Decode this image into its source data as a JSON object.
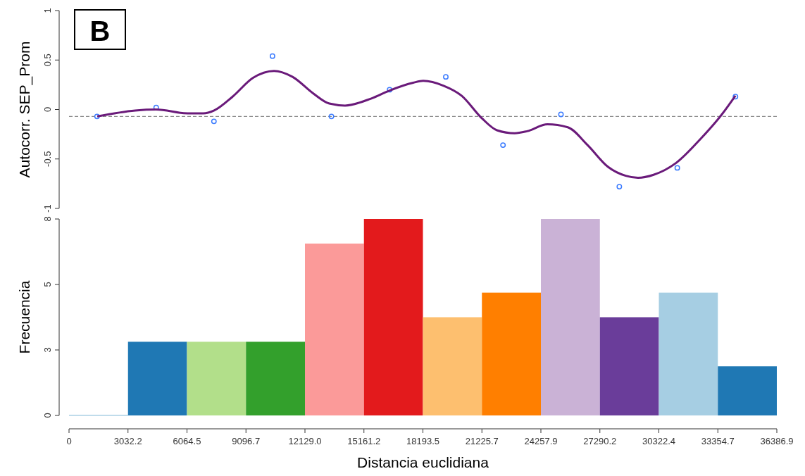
{
  "chart_data": [
    {
      "type": "scatter",
      "ylabel": "Autocorr. SEP_Prom",
      "annotations": [
        "B"
      ],
      "xlim": [
        0,
        36386.9
      ],
      "ylim": [
        -1,
        1
      ],
      "yticks": [
        -1,
        -0.5,
        0,
        0.5,
        1
      ],
      "tick_labels": "y",
      "grid": false,
      "ref_lines": [
        {
          "axis": "y",
          "value": -0.07,
          "color": "#8c8c8c",
          "line_style": "dashed"
        }
      ],
      "series": [
        {
          "type": "scatter",
          "color": "#3b7bff",
          "marker": "circle",
          "x": [
            1440,
            4480,
            7450,
            10460,
            13490,
            16480,
            19370,
            22310,
            25290,
            28290,
            31270,
            34260
          ],
          "values": [
            -0.07,
            0.02,
            -0.12,
            0.54,
            -0.07,
            0.2,
            0.33,
            -0.36,
            -0.05,
            -0.78,
            -0.59,
            0.13
          ]
        },
        {
          "type": "line",
          "color": "#6a1a7a",
          "marker": "none",
          "line_style": "solid",
          "x": [
            1450,
            3400,
            4480,
            6100,
            6900,
            7460,
            8410,
            9460,
            10540,
            11490,
            12570,
            13380,
            14190,
            15520,
            16460,
            17690,
            18210,
            19260,
            20180,
            21230,
            22000,
            22910,
            23540,
            24590,
            25640,
            26660,
            27710,
            28620,
            29250,
            30050,
            31210,
            32500,
            33560,
            34260
          ],
          "values": [
            -0.07,
            -0.01,
            0.0,
            -0.04,
            -0.04,
            -0.01,
            0.13,
            0.32,
            0.39,
            0.33,
            0.16,
            0.06,
            0.04,
            0.11,
            0.19,
            0.27,
            0.29,
            0.24,
            0.14,
            -0.09,
            -0.21,
            -0.24,
            -0.22,
            -0.15,
            -0.18,
            -0.36,
            -0.58,
            -0.67,
            -0.69,
            -0.66,
            -0.54,
            -0.29,
            -0.05,
            0.14
          ]
        }
      ]
    },
    {
      "type": "histogram",
      "xlabel": "Distancia euclidiana",
      "ylabel": "Frecuencia",
      "grid": false,
      "bins": [
        0,
        3032.2,
        6064.5,
        9096.7,
        12129,
        15161.2,
        18193.5,
        21225.7,
        24257.9,
        27290.2,
        30322.4,
        33354.7,
        36386.9
      ],
      "values": [
        0,
        3,
        3,
        3,
        7,
        8,
        4,
        5,
        8,
        4,
        5,
        2
      ],
      "colors": [
        "#a6cee3",
        "#1f78b4",
        "#b2df8a",
        "#33a02c",
        "#fb9a99",
        "#e31a1c",
        "#fdbf6f",
        "#ff7f00",
        "#cab2d6",
        "#6a3d9a",
        "#a6cee3",
        "#1f78b4"
      ],
      "xlim": [
        0,
        36386.9
      ],
      "xticks": [
        0,
        3032.2,
        6064.5,
        9096.7,
        {
          "value": 12129,
          "label": "12129.0"
        },
        15161.2,
        18193.5,
        21225.7,
        24257.9,
        27290.2,
        30322.4,
        33354.7,
        36386.9
      ],
      "ylim": [
        0,
        8
      ],
      "yticks": [
        0,
        {
          "value": 2.667,
          "label": "3"
        },
        {
          "value": 5.333,
          "label": "5"
        },
        8
      ]
    }
  ]
}
